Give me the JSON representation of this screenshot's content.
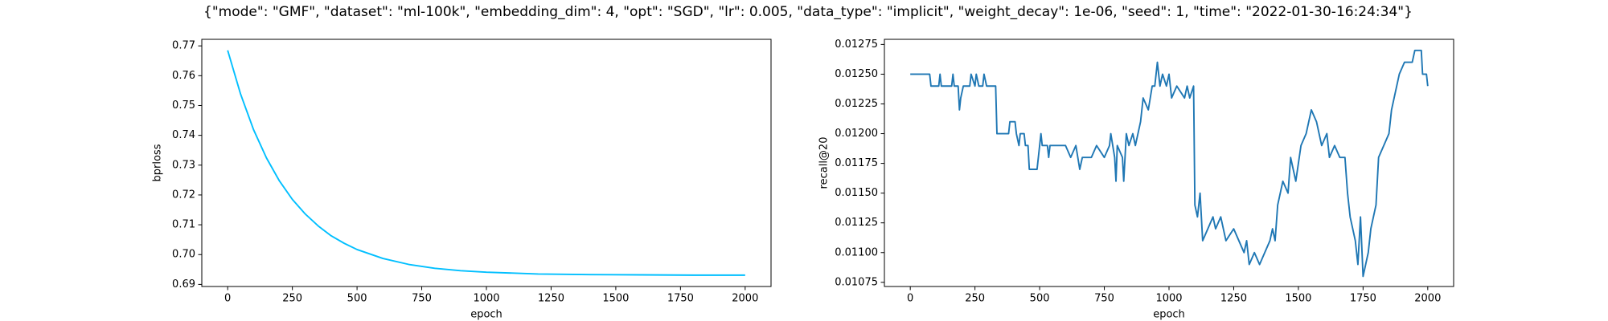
{
  "title": "{\"mode\": \"GMF\", \"dataset\": \"ml-100k\", \"embedding_dim\": 4, \"opt\": \"SGD\", \"lr\": 0.005, \"data_type\": \"implicit\", \"weight_decay\": 1e-06, \"seed\": 1, \"time\": \"2022-01-30-16:24:34\"}",
  "chart_data": [
    {
      "type": "line",
      "xlabel": "epoch",
      "ylabel": "bprloss",
      "color": "#00bfff",
      "x": [
        0,
        50,
        100,
        150,
        200,
        250,
        300,
        350,
        400,
        450,
        500,
        600,
        700,
        800,
        900,
        1000,
        1200,
        1400,
        1600,
        1800,
        2000
      ],
      "values": [
        0.7685,
        0.7538,
        0.7419,
        0.7324,
        0.7247,
        0.7185,
        0.7136,
        0.7096,
        0.7063,
        0.7038,
        0.7017,
        0.6987,
        0.6967,
        0.6954,
        0.6946,
        0.6941,
        0.6935,
        0.6933,
        0.6932,
        0.6931,
        0.6931
      ],
      "xlim": [
        -100,
        2100
      ],
      "ylim": [
        0.6893,
        0.7722
      ],
      "xticks": [
        0,
        250,
        500,
        750,
        1000,
        1250,
        1500,
        1750,
        2000
      ],
      "yticks": [
        0.69,
        {
          "value": 0.7,
          "label": "0.70"
        },
        0.71,
        0.72,
        0.73,
        0.74,
        0.75,
        0.76,
        0.77
      ]
    },
    {
      "type": "line",
      "xlabel": "epoch",
      "ylabel": "recall@20",
      "color": "#1f77b4",
      "x": [
        0,
        75,
        80,
        110,
        115,
        120,
        160,
        165,
        170,
        185,
        190,
        195,
        205,
        230,
        235,
        250,
        255,
        265,
        280,
        285,
        295,
        330,
        335,
        380,
        385,
        405,
        410,
        420,
        425,
        440,
        445,
        455,
        460,
        490,
        495,
        505,
        510,
        530,
        535,
        540,
        580,
        600,
        620,
        640,
        655,
        665,
        680,
        700,
        720,
        750,
        770,
        775,
        790,
        795,
        800,
        820,
        825,
        835,
        845,
        860,
        870,
        890,
        900,
        920,
        935,
        945,
        955,
        965,
        975,
        990,
        1000,
        1010,
        1030,
        1060,
        1070,
        1080,
        1095,
        1100,
        1110,
        1120,
        1130,
        1150,
        1170,
        1180,
        1200,
        1220,
        1250,
        1270,
        1290,
        1300,
        1310,
        1330,
        1350,
        1370,
        1390,
        1400,
        1410,
        1420,
        1440,
        1460,
        1470,
        1490,
        1510,
        1530,
        1550,
        1570,
        1590,
        1610,
        1620,
        1640,
        1660,
        1680,
        1690,
        1700,
        1710,
        1720,
        1730,
        1740,
        1750,
        1760,
        1770,
        1780,
        1800,
        1810,
        1830,
        1850,
        1860,
        1870,
        1890,
        1910,
        1940,
        1950,
        1975,
        1980,
        1995,
        2000
      ],
      "values": [
        0.0125,
        0.0125,
        0.0124,
        0.0124,
        0.0125,
        0.0124,
        0.0124,
        0.0125,
        0.0124,
        0.0124,
        0.0122,
        0.0123,
        0.0124,
        0.0124,
        0.0125,
        0.0124,
        0.0125,
        0.0124,
        0.0124,
        0.0125,
        0.0124,
        0.0124,
        0.012,
        0.012,
        0.0121,
        0.0121,
        0.012,
        0.0119,
        0.012,
        0.012,
        0.0119,
        0.0119,
        0.0117,
        0.0117,
        0.0118,
        0.012,
        0.0119,
        0.0119,
        0.0118,
        0.0119,
        0.0119,
        0.0119,
        0.0118,
        0.0119,
        0.0117,
        0.0118,
        0.0118,
        0.0118,
        0.0119,
        0.0118,
        0.0119,
        0.012,
        0.0118,
        0.0116,
        0.0119,
        0.0118,
        0.0116,
        0.012,
        0.0119,
        0.012,
        0.0119,
        0.0121,
        0.0123,
        0.0122,
        0.0124,
        0.0124,
        0.0126,
        0.0124,
        0.0125,
        0.0124,
        0.0125,
        0.0123,
        0.0124,
        0.0123,
        0.0124,
        0.0123,
        0.0124,
        0.0114,
        0.0113,
        0.0115,
        0.0111,
        0.0112,
        0.0113,
        0.0112,
        0.0113,
        0.0111,
        0.0112,
        0.0111,
        0.011,
        0.0111,
        0.0109,
        0.011,
        0.0109,
        0.011,
        0.0111,
        0.0112,
        0.0111,
        0.0114,
        0.0116,
        0.0115,
        0.0118,
        0.0116,
        0.0119,
        0.012,
        0.0122,
        0.0121,
        0.0119,
        0.012,
        0.0118,
        0.0119,
        0.0118,
        0.0118,
        0.0115,
        0.0113,
        0.0112,
        0.0111,
        0.0109,
        0.0113,
        0.0108,
        0.0109,
        0.011,
        0.0112,
        0.0114,
        0.0118,
        0.0119,
        0.012,
        0.0122,
        0.0123,
        0.0125,
        0.0126,
        0.0126,
        0.0127,
        0.0127,
        0.0125,
        0.0125,
        0.0124
      ],
      "xlim": [
        -100,
        2100
      ],
      "ylim": [
        0.010715,
        0.012793
      ],
      "xticks": [
        0,
        250,
        500,
        750,
        1000,
        1250,
        1500,
        1750,
        2000
      ],
      "yticks": [
        0.01075,
        {
          "value": 0.011,
          "label": "0.01100"
        },
        0.01125,
        {
          "value": 0.0115,
          "label": "0.01150"
        },
        0.01175,
        {
          "value": 0.012,
          "label": "0.01200"
        },
        0.01225,
        {
          "value": 0.0125,
          "label": "0.01250"
        },
        0.01275
      ]
    }
  ]
}
